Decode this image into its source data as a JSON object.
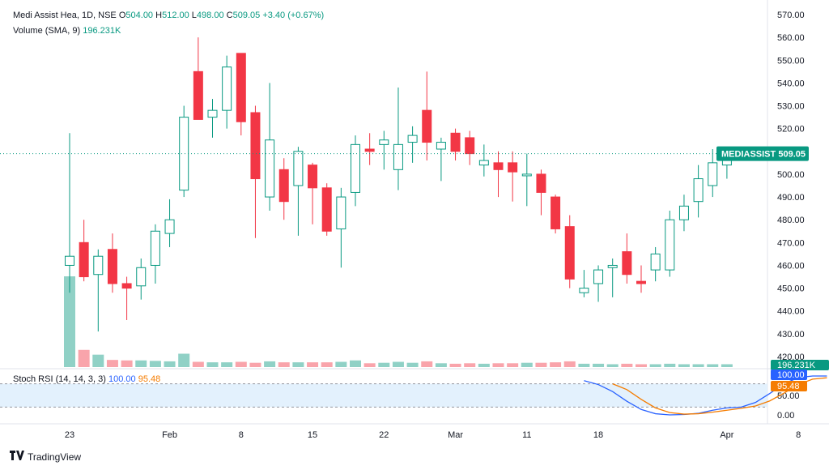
{
  "header": {
    "symbol": "Medi Assist Hea, 1D, NSE",
    "o_label": "O",
    "o_value": "504.00",
    "h_label": "H",
    "h_value": "512.00",
    "l_label": "L",
    "l_value": "498.00",
    "c_label": "C",
    "c_value": "509.05",
    "change": "+3.40 (+0.67%)",
    "volume_label": "Volume (SMA, 9)",
    "volume_value": "196.231K",
    "stoch_label": "Stoch RSI (14, 14, 3, 3)",
    "stoch_k": "100.00",
    "stoch_d": "95.48"
  },
  "price_tag": {
    "ticker": "MEDIASSIST",
    "price": "509.05"
  },
  "volume_tag": "196.231K",
  "stoch_tags": {
    "k": "100.00",
    "d": "95.48"
  },
  "brand": "TradingView",
  "colors": {
    "up": "#089981",
    "down": "#f23645",
    "stoch_k": "#2962ff",
    "stoch_d": "#f57c00",
    "band": "#e3f1fd"
  },
  "chart_data": {
    "type": "candlestick",
    "price_axis": {
      "min": 420,
      "max": 570,
      "step": 10
    },
    "price_ticks": [
      "570.00",
      "560.00",
      "550.00",
      "540.00",
      "530.00",
      "520.00",
      "510.00",
      "500.00",
      "490.00",
      "480.00",
      "470.00",
      "460.00",
      "450.00",
      "440.00",
      "430.00",
      "420.00"
    ],
    "x_tick_labels": [
      {
        "label": "23",
        "bar": 0
      },
      {
        "label": "Feb",
        "bar": 7
      },
      {
        "label": "8",
        "bar": 12
      },
      {
        "label": "15",
        "bar": 17
      },
      {
        "label": "22",
        "bar": 22
      },
      {
        "label": "Mar",
        "bar": 27
      },
      {
        "label": "11",
        "bar": 32
      },
      {
        "label": "18",
        "bar": 37
      },
      {
        "label": "Apr",
        "bar": 46
      },
      {
        "label": "8",
        "bar": 51
      }
    ],
    "candles": [
      {
        "o": 460,
        "h": 518,
        "l": 448,
        "c": 464,
        "v": 1.9
      },
      {
        "o": 470,
        "h": 480,
        "l": 453,
        "c": 455,
        "v": 0.36
      },
      {
        "o": 456,
        "h": 467,
        "l": 431,
        "c": 464,
        "v": 0.26
      },
      {
        "o": 467,
        "h": 474,
        "l": 448,
        "c": 452,
        "v": 0.15
      },
      {
        "o": 452,
        "h": 455,
        "l": 436,
        "c": 450,
        "v": 0.14
      },
      {
        "o": 451,
        "h": 463,
        "l": 445,
        "c": 459,
        "v": 0.14
      },
      {
        "o": 460,
        "h": 478,
        "l": 452,
        "c": 475,
        "v": 0.13
      },
      {
        "o": 474,
        "h": 489,
        "l": 468,
        "c": 480,
        "v": 0.12
      },
      {
        "o": 493,
        "h": 530,
        "l": 490,
        "c": 525,
        "v": 0.28
      },
      {
        "o": 545,
        "h": 560,
        "l": 525,
        "c": 524,
        "v": 0.11
      },
      {
        "o": 525,
        "h": 533,
        "l": 516,
        "c": 528,
        "v": 0.1
      },
      {
        "o": 528,
        "h": 552,
        "l": 520,
        "c": 547,
        "v": 0.1
      },
      {
        "o": 553,
        "h": 553,
        "l": 517,
        "c": 523,
        "v": 0.11
      },
      {
        "o": 527,
        "h": 530,
        "l": 472,
        "c": 498,
        "v": 0.09
      },
      {
        "o": 490,
        "h": 540,
        "l": 484,
        "c": 515,
        "v": 0.12
      },
      {
        "o": 502,
        "h": 507,
        "l": 480,
        "c": 488,
        "v": 0.1
      },
      {
        "o": 495,
        "h": 512,
        "l": 473,
        "c": 510,
        "v": 0.1
      },
      {
        "o": 504,
        "h": 505,
        "l": 478,
        "c": 494,
        "v": 0.1
      },
      {
        "o": 494,
        "h": 496,
        "l": 473,
        "c": 475,
        "v": 0.1
      },
      {
        "o": 476,
        "h": 494,
        "l": 459,
        "c": 490,
        "v": 0.11
      },
      {
        "o": 492,
        "h": 517,
        "l": 486,
        "c": 513,
        "v": 0.14
      },
      {
        "o": 511,
        "h": 518,
        "l": 504,
        "c": 510,
        "v": 0.08
      },
      {
        "o": 513,
        "h": 519,
        "l": 502,
        "c": 515,
        "v": 0.09
      },
      {
        "o": 502,
        "h": 538,
        "l": 493,
        "c": 513,
        "v": 0.11
      },
      {
        "o": 514,
        "h": 521,
        "l": 505,
        "c": 517,
        "v": 0.09
      },
      {
        "o": 528,
        "h": 545,
        "l": 506,
        "c": 514,
        "v": 0.12
      },
      {
        "o": 511,
        "h": 516,
        "l": 497,
        "c": 514,
        "v": 0.08
      },
      {
        "o": 518,
        "h": 520,
        "l": 506,
        "c": 510,
        "v": 0.07
      },
      {
        "o": 516,
        "h": 519,
        "l": 504,
        "c": 509,
        "v": 0.08
      },
      {
        "o": 504,
        "h": 513,
        "l": 499,
        "c": 506,
        "v": 0.07
      },
      {
        "o": 505,
        "h": 510,
        "l": 490,
        "c": 502,
        "v": 0.08
      },
      {
        "o": 505,
        "h": 510,
        "l": 488,
        "c": 501,
        "v": 0.08
      },
      {
        "o": 500,
        "h": 509,
        "l": 486,
        "c": 500,
        "v": 0.09
      },
      {
        "o": 500,
        "h": 502,
        "l": 482,
        "c": 492,
        "v": 0.09
      },
      {
        "o": 490,
        "h": 491,
        "l": 474,
        "c": 476,
        "v": 0.1
      },
      {
        "o": 477,
        "h": 482,
        "l": 450,
        "c": 454,
        "v": 0.12
      },
      {
        "o": 448,
        "h": 458,
        "l": 446,
        "c": 450,
        "v": 0.07
      },
      {
        "o": 452,
        "h": 460,
        "l": 444,
        "c": 458,
        "v": 0.07
      },
      {
        "o": 459,
        "h": 463,
        "l": 446,
        "c": 460,
        "v": 0.06
      },
      {
        "o": 466,
        "h": 474,
        "l": 452,
        "c": 456,
        "v": 0.07
      },
      {
        "o": 453,
        "h": 460,
        "l": 448,
        "c": 452,
        "v": 0.06
      },
      {
        "o": 458,
        "h": 468,
        "l": 453,
        "c": 465,
        "v": 0.06
      },
      {
        "o": 458,
        "h": 484,
        "l": 455,
        "c": 480,
        "v": 0.07
      },
      {
        "o": 480,
        "h": 491,
        "l": 475,
        "c": 486,
        "v": 0.06
      },
      {
        "o": 488,
        "h": 504,
        "l": 481,
        "c": 498,
        "v": 0.06
      },
      {
        "o": 495,
        "h": 511,
        "l": 490,
        "c": 505,
        "v": 0.06
      },
      {
        "o": 504,
        "h": 512,
        "l": 498,
        "c": 509,
        "v": 0.06
      }
    ],
    "volume_unit": "M",
    "stoch_axis": {
      "ticks": [
        "100.00",
        "50.00",
        "0.00"
      ],
      "upper_band": 80,
      "lower_band": 20
    },
    "stoch_start_bar": 36,
    "stoch_k": [
      88,
      78,
      60,
      35,
      14,
      3,
      0,
      1,
      4,
      12,
      18,
      20,
      32,
      55,
      80,
      96,
      100,
      100
    ],
    "stoch_d": [
      null,
      null,
      80,
      65,
      40,
      18,
      6,
      2,
      3,
      7,
      12,
      17,
      23,
      36,
      56,
      78,
      92,
      95.48
    ]
  }
}
